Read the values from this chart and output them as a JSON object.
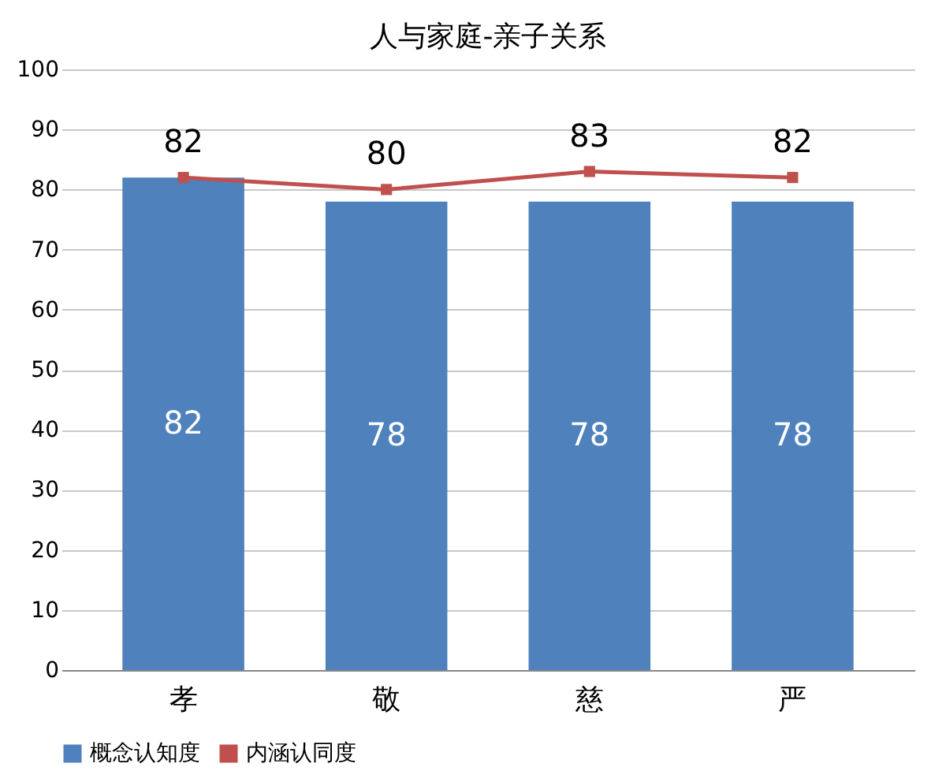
{
  "chart_data": {
    "type": "bar",
    "title": "人与家庭-亲子关系",
    "categories": [
      "孝",
      "敬",
      "慈",
      "严"
    ],
    "series": [
      {
        "name": "概念认知度",
        "color": "#4f81bd",
        "values": [
          82,
          78,
          78,
          78
        ]
      },
      {
        "name": "内涵认同度",
        "color": "#c0504d",
        "type": "line",
        "marker": "square",
        "values": [
          82,
          80,
          83,
          82
        ]
      }
    ],
    "ylim": [
      0,
      100
    ],
    "yticks": [
      0,
      10,
      20,
      30,
      40,
      50,
      60,
      70,
      80,
      90,
      100
    ],
    "grid": "y",
    "legend": "bottom",
    "data_labels": true
  }
}
